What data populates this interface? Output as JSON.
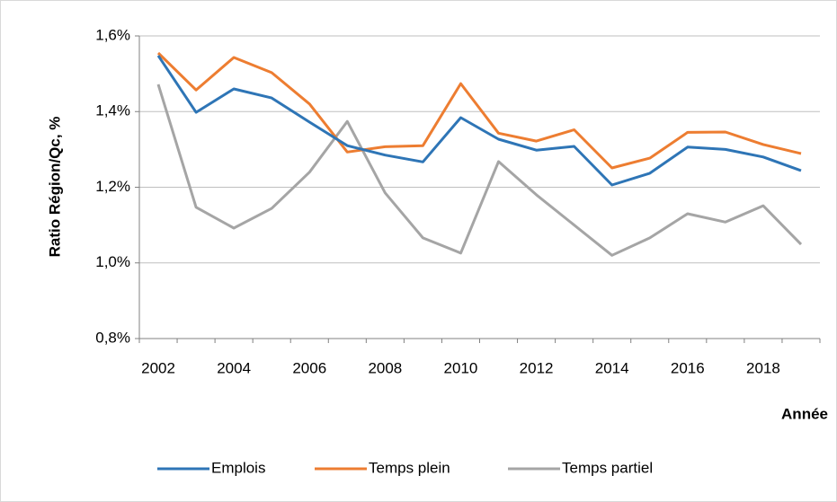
{
  "chart_data": {
    "type": "line",
    "y_label": "Ratio Région/Qc, %",
    "x_label": "Année",
    "categories": [
      "2002",
      null,
      "2004",
      null,
      "2006",
      null,
      "2008",
      null,
      "2010",
      null,
      "2012",
      null,
      "2014",
      null,
      "2016",
      null,
      "2018",
      null
    ],
    "series": [
      {
        "name": "Emplois",
        "color": "#2e75b6",
        "values": [
          1.548,
          1.398,
          1.46,
          1.436,
          1.372,
          1.31,
          1.285,
          1.267,
          1.384,
          1.327,
          1.298,
          1.308,
          1.206,
          1.237,
          1.306,
          1.3,
          1.28,
          1.244
        ]
      },
      {
        "name": "Temps plein",
        "color": "#ed7d31",
        "values": [
          1.555,
          1.457,
          1.543,
          1.503,
          1.42,
          1.293,
          1.307,
          1.31,
          1.474,
          1.343,
          1.322,
          1.352,
          1.251,
          1.277,
          1.345,
          1.346,
          1.313,
          1.289
        ]
      },
      {
        "name": "Temps partiel",
        "color": "#a5a5a5",
        "values": [
          1.472,
          1.147,
          1.092,
          1.144,
          1.24,
          1.374,
          1.185,
          1.066,
          1.026,
          1.268,
          1.18,
          1.1,
          1.02,
          1.066,
          1.13,
          1.108,
          1.151,
          1.049
        ]
      }
    ],
    "ylim": [
      0.8,
      1.6
    ],
    "yticks": [
      {
        "value": 0.8,
        "label": "0,8%"
      },
      {
        "value": 1.0,
        "label": "1,0%"
      },
      {
        "value": 1.2,
        "label": "1,2%"
      },
      {
        "value": 1.4,
        "label": "1,4%"
      },
      {
        "value": 1.6,
        "label": "1,6%"
      }
    ],
    "grid": true,
    "legend": "bottom"
  }
}
